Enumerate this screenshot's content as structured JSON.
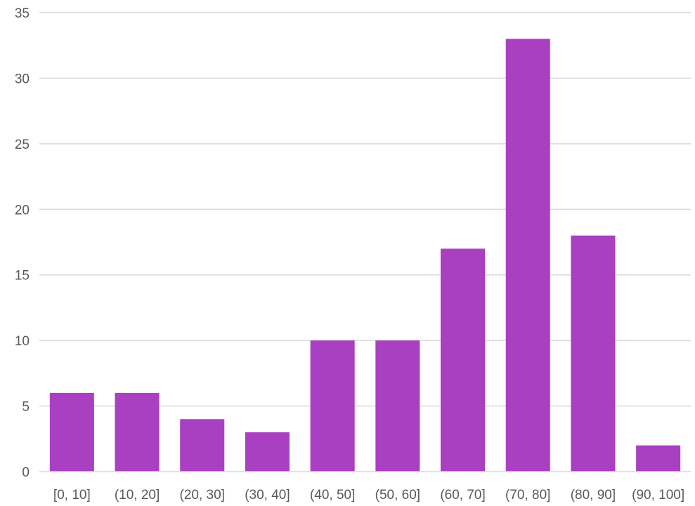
{
  "chart_data": {
    "type": "bar",
    "categories": [
      "[0, 10]",
      "(10, 20]",
      "(20, 30]",
      "(30, 40]",
      "(40, 50]",
      "(50, 60]",
      "(60, 70]",
      "(70, 80]",
      "(80, 90]",
      "(90, 100]"
    ],
    "values": [
      6,
      6,
      4,
      3,
      10,
      10,
      17,
      33,
      18,
      2
    ],
    "yticks": [
      "0",
      "5",
      "10",
      "15",
      "20",
      "25",
      "30",
      "35"
    ],
    "ylim": [
      0,
      35
    ],
    "grid": true,
    "legend": "none",
    "bar_color": "#a93fc1"
  }
}
